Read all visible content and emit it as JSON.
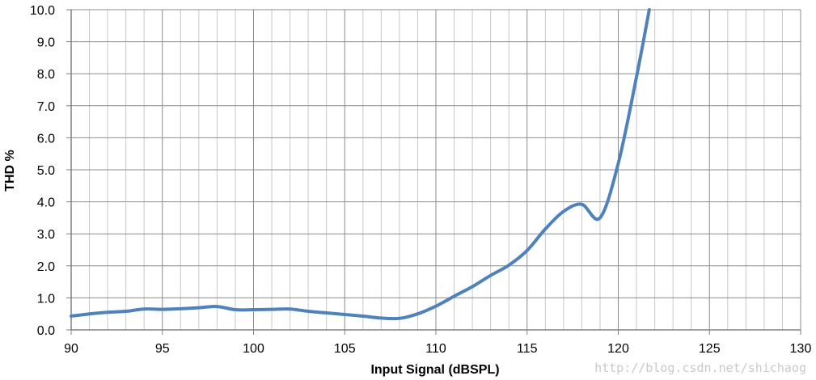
{
  "chart_data": {
    "type": "line",
    "ylabel": "THD %",
    "xlabel": "Input Signal (dBSPL)",
    "xlim": [
      90,
      130
    ],
    "ylim": [
      0,
      10
    ],
    "x_ticks": [
      "90",
      "95",
      "100",
      "105",
      "110",
      "115",
      "120",
      "125",
      "130"
    ],
    "y_ticks": [
      "0.0",
      "1.0",
      "2.0",
      "3.0",
      "4.0",
      "5.0",
      "6.0",
      "7.0",
      "8.0",
      "9.0",
      "10.0"
    ],
    "grid": true,
    "x_minor_step": 1,
    "y_major_step": 1,
    "colors": {
      "series": "#4f81bd",
      "major_grid": "#8c8c8c",
      "minor_grid": "#c8c8c8",
      "axis": "#808080"
    },
    "series": [
      {
        "x": [
          90,
          91,
          92,
          93,
          94,
          95,
          96,
          97,
          98,
          99,
          100,
          101,
          102,
          103,
          104,
          105,
          106,
          107,
          108,
          109,
          110,
          111,
          112,
          113,
          114,
          115,
          116,
          117,
          118,
          119,
          120,
          121,
          121.7
        ],
        "y": [
          0.43,
          0.5,
          0.55,
          0.58,
          0.65,
          0.64,
          0.66,
          0.69,
          0.73,
          0.63,
          0.63,
          0.64,
          0.65,
          0.58,
          0.53,
          0.48,
          0.43,
          0.37,
          0.36,
          0.5,
          0.74,
          1.05,
          1.35,
          1.7,
          2.02,
          2.48,
          3.15,
          3.7,
          3.92,
          3.5,
          5.2,
          7.9,
          10.0
        ]
      }
    ]
  },
  "watermark": "http://blog.csdn.net/shichaog"
}
